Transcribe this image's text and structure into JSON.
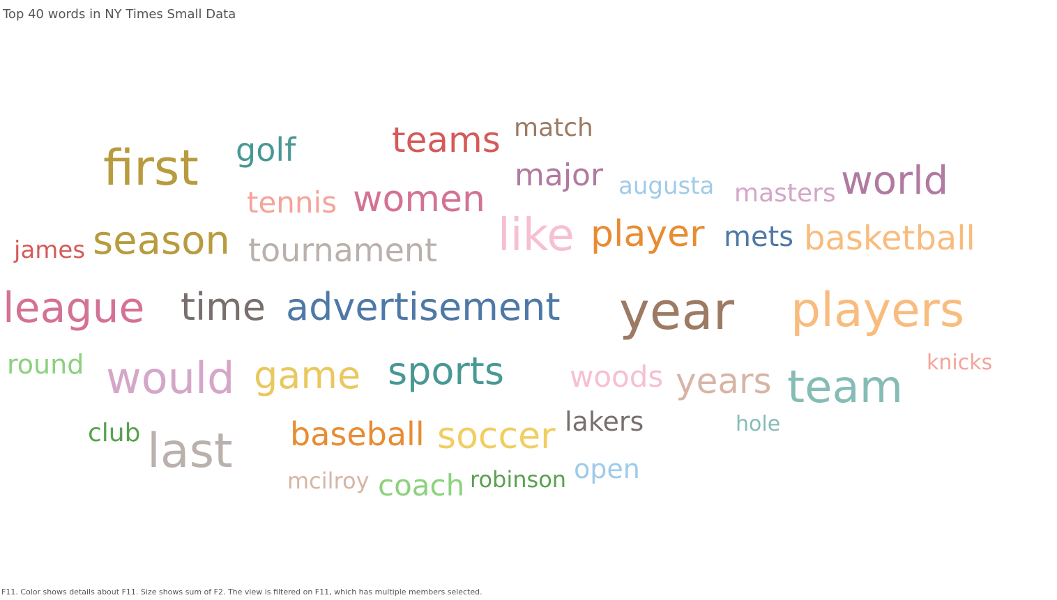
{
  "title": "Top 40 words in NY Times Small Data",
  "caption": "F11.  Color shows details about F11.  Size shows sum of F2. The view is filtered on F11, which has multiple members selected.",
  "chart_data": {
    "type": "word-cloud",
    "size_measure": "F2",
    "color_dimension": "F11",
    "words": [
      {
        "text": "year",
        "size": 74,
        "color": "#9c7a63"
      },
      {
        "text": "first",
        "size": 70,
        "color": "#b89b3e"
      },
      {
        "text": "last",
        "size": 68,
        "color": "#bab0ac"
      },
      {
        "text": "players",
        "size": 68,
        "color": "#f8bc7e"
      },
      {
        "text": "team",
        "size": 64,
        "color": "#86bcb6"
      },
      {
        "text": "like",
        "size": 64,
        "color": "#f6c0d2"
      },
      {
        "text": "would",
        "size": 62,
        "color": "#d4a6c8"
      },
      {
        "text": "league",
        "size": 60,
        "color": "#d37295"
      },
      {
        "text": "season",
        "size": 56,
        "color": "#b89b3e"
      },
      {
        "text": "advertisement",
        "size": 54,
        "color": "#4e79a7"
      },
      {
        "text": "time",
        "size": 54,
        "color": "#79706e"
      },
      {
        "text": "game",
        "size": 54,
        "color": "#e9c85f"
      },
      {
        "text": "sports",
        "size": 54,
        "color": "#499894"
      },
      {
        "text": "world",
        "size": 56,
        "color": "#b07aa1"
      },
      {
        "text": "player",
        "size": 52,
        "color": "#e88c32"
      },
      {
        "text": "soccer",
        "size": 52,
        "color": "#f1ce63"
      },
      {
        "text": "women",
        "size": 52,
        "color": "#d37295"
      },
      {
        "text": "years",
        "size": 50,
        "color": "#d7b5a6"
      },
      {
        "text": "teams",
        "size": 50,
        "color": "#d55a5a"
      },
      {
        "text": "basketball",
        "size": 48,
        "color": "#f8bc7e"
      },
      {
        "text": "tournament",
        "size": 46,
        "color": "#bab0ac"
      },
      {
        "text": "golf",
        "size": 46,
        "color": "#499894"
      },
      {
        "text": "baseball",
        "size": 46,
        "color": "#e88c32"
      },
      {
        "text": "major",
        "size": 44,
        "color": "#b07aa1"
      },
      {
        "text": "woods",
        "size": 42,
        "color": "#f6c0d2"
      },
      {
        "text": "tennis",
        "size": 42,
        "color": "#f4a49a"
      },
      {
        "text": "coach",
        "size": 42,
        "color": "#8cd17d"
      },
      {
        "text": "mets",
        "size": 40,
        "color": "#4e79a7"
      },
      {
        "text": "lakers",
        "size": 38,
        "color": "#79706e"
      },
      {
        "text": "round",
        "size": 38,
        "color": "#8cd17d"
      },
      {
        "text": "open",
        "size": 38,
        "color": "#a0cbe8"
      },
      {
        "text": "match",
        "size": 36,
        "color": "#9c7a63"
      },
      {
        "text": "masters",
        "size": 36,
        "color": "#d4a6c8"
      },
      {
        "text": "club",
        "size": 36,
        "color": "#59a14f"
      },
      {
        "text": "james",
        "size": 34,
        "color": "#d55a5a"
      },
      {
        "text": "augusta",
        "size": 34,
        "color": "#a0cbe8"
      },
      {
        "text": "mcilroy",
        "size": 32,
        "color": "#d7b5a6"
      },
      {
        "text": "robinson",
        "size": 32,
        "color": "#59a14f"
      },
      {
        "text": "hole",
        "size": 30,
        "color": "#86bcb6"
      },
      {
        "text": "knicks",
        "size": 30,
        "color": "#f4a49a"
      }
    ]
  }
}
